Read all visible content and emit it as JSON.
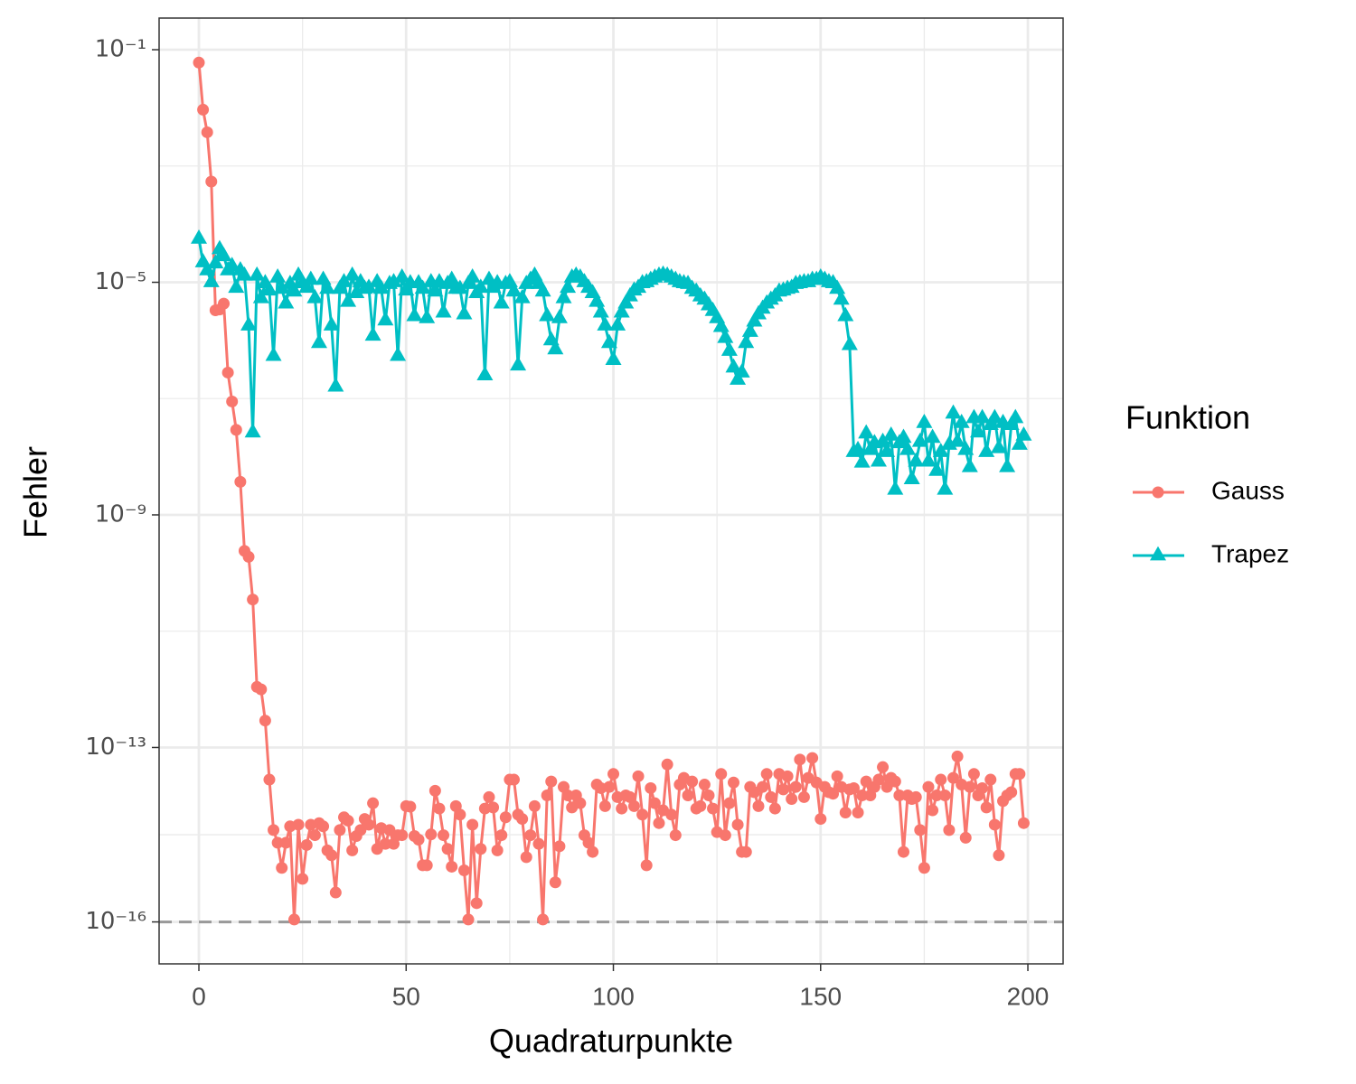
{
  "chart_data": {
    "type": "line",
    "x_label": "Quadraturpunkte",
    "y_label": "Fehler",
    "legend_title": "Funktion",
    "legend": "right",
    "log_y": true,
    "grid": true,
    "xlim": [
      -9.6,
      208.5
    ],
    "xticks": [
      0,
      50,
      100,
      150,
      200
    ],
    "x_minor_grid": [
      25,
      75,
      125,
      175
    ],
    "ylim": [
      0.35,
      1.9e-17
    ],
    "yticks": [
      {
        "value": 0.1,
        "label": "10⁻¹"
      },
      {
        "value": 1e-05,
        "label": "10⁻⁵"
      },
      {
        "value": 1e-09,
        "label": "10⁻⁹"
      },
      {
        "value": 1e-13,
        "label": "10⁻¹³"
      },
      {
        "value": 1e-16,
        "label": "10⁻¹⁶"
      }
    ],
    "y_minor_grid": [
      0.001,
      1e-07,
      1e-11,
      3.16e-15
    ],
    "hline": 1e-16,
    "x": [
      0,
      1,
      2,
      3,
      4,
      5,
      6,
      7,
      8,
      9,
      10,
      11,
      12,
      13,
      14,
      15,
      16,
      17,
      18,
      19,
      20,
      21,
      22,
      23,
      24,
      25,
      26,
      27,
      28,
      29,
      30,
      31,
      32,
      33,
      34,
      35,
      36,
      37,
      38,
      39,
      40,
      41,
      42,
      43,
      44,
      45,
      46,
      47,
      48,
      49,
      50,
      51,
      52,
      53,
      54,
      55,
      56,
      57,
      58,
      59,
      60,
      61,
      62,
      63,
      64,
      65,
      66,
      67,
      68,
      69,
      70,
      71,
      72,
      73,
      74,
      75,
      76,
      77,
      78,
      79,
      80,
      81,
      82,
      83,
      84,
      85,
      86,
      87,
      88,
      89,
      90,
      91,
      92,
      93,
      94,
      95,
      96,
      97,
      98,
      99,
      100,
      101,
      102,
      103,
      104,
      105,
      106,
      107,
      108,
      109,
      110,
      111,
      112,
      113,
      114,
      115,
      116,
      117,
      118,
      119,
      120,
      121,
      122,
      123,
      124,
      125,
      126,
      127,
      128,
      129,
      130,
      131,
      132,
      133,
      134,
      135,
      136,
      137,
      138,
      139,
      140,
      141,
      142,
      143,
      144,
      145,
      146,
      147,
      148,
      149,
      150,
      151,
      152,
      153,
      154,
      155,
      156,
      157,
      158,
      159,
      160,
      161,
      162,
      163,
      164,
      165,
      166,
      167,
      168,
      169,
      170,
      171,
      172,
      173,
      174,
      175,
      176,
      177,
      178,
      179,
      180,
      181,
      182,
      183,
      184,
      185,
      186,
      187,
      188,
      189,
      190,
      191,
      192,
      193,
      194,
      195,
      196,
      197,
      198,
      199
    ],
    "series": [
      {
        "name": "Gauss",
        "color": "#F8766D",
        "shape": "circle",
        "values": [
          0.06,
          0.0093,
          0.0038,
          0.00054,
          3.3e-06,
          3.4e-06,
          4.3e-06,
          2.8e-07,
          8.9e-08,
          2.9e-08,
          3.7e-09,
          2.4e-10,
          1.9e-10,
          3.5e-11,
          1.1e-12,
          1e-12,
          2.9e-13,
          2.8e-14,
          3.8e-15,
          2.3e-15,
          8.5e-16,
          2.3e-15,
          4.4e-15,
          1.1e-16,
          4.7e-15,
          5.5e-16,
          2.1e-15,
          4.7e-15,
          3.1e-15,
          5e-15,
          4.4e-15,
          1.7e-15,
          1.4e-15,
          3.2e-16,
          3.8e-15,
          6.3e-15,
          5.5e-15,
          1.7e-15,
          3e-15,
          3.8e-15,
          5.9e-15,
          4.7e-15,
          1.1e-14,
          1.8e-15,
          4.1e-15,
          2.2e-15,
          3.8e-15,
          2.2e-15,
          3.1e-15,
          3.1e-15,
          9.8e-15,
          9.6e-15,
          3e-15,
          2.6e-15,
          9.4e-16,
          9.4e-16,
          3.2e-15,
          1.8e-14,
          8.9e-15,
          3.1e-15,
          1.8e-15,
          8.9e-16,
          9.8e-15,
          7e-15,
          7.7e-16,
          1.1e-16,
          4.7e-15,
          2.1e-16,
          1.8e-15,
          8.9e-15,
          1.4e-14,
          9.3e-15,
          1.7e-15,
          3.1e-15,
          6.3e-15,
          2.8e-14,
          2.8e-14,
          7e-15,
          5.9e-15,
          1.3e-15,
          3.1e-15,
          9.8e-15,
          2.2e-15,
          1.1e-16,
          1.5e-14,
          2.6e-14,
          4.8e-16,
          2e-15,
          2.1e-14,
          1.5e-14,
          9.3e-15,
          1.5e-14,
          1.1e-14,
          3.1e-15,
          2.3e-15,
          1.6e-15,
          2.3e-14,
          2e-14,
          9.8e-15,
          2.1e-14,
          3.5e-14,
          1.4e-14,
          8.9e-15,
          1.5e-14,
          1.4e-14,
          9.8e-15,
          3.2e-14,
          7e-15,
          9.4e-16,
          2e-14,
          1.1e-14,
          5e-15,
          8.3e-15,
          5.1e-14,
          7e-15,
          3.1e-15,
          2.3e-14,
          3e-14,
          1.5e-14,
          2.6e-14,
          8.9e-15,
          9.8e-15,
          2.3e-14,
          1.5e-14,
          8.9e-15,
          3.5e-15,
          3.5e-14,
          3.1e-15,
          1.1e-14,
          2.5e-14,
          4.7e-15,
          1.6e-15,
          1.6e-15,
          2.1e-14,
          1.7e-14,
          9.8e-15,
          2.1e-14,
          3.5e-14,
          1.4e-14,
          8.9e-15,
          3.5e-14,
          1.9e-14,
          3.2e-14,
          1.3e-14,
          2.1e-14,
          6.2e-14,
          1.4e-14,
          3e-14,
          6.6e-14,
          2.5e-14,
          5.9e-15,
          2.1e-14,
          1.7e-14,
          1.6e-14,
          3.2e-14,
          2.1e-14,
          7.6e-15,
          1.9e-14,
          2e-14,
          7.6e-15,
          1.5e-14,
          2.6e-14,
          1.5e-14,
          2.1e-14,
          2.8e-14,
          4.6e-14,
          2.1e-14,
          3e-14,
          2.6e-14,
          1.5e-14,
          1.6e-15,
          1.5e-14,
          1.3e-14,
          1.4e-14,
          3.8e-15,
          8.5e-16,
          2.1e-14,
          8.3e-15,
          1.5e-14,
          2.8e-14,
          1.5e-14,
          3.8e-15,
          3e-14,
          7e-14,
          2.3e-14,
          2.8e-15,
          2.1e-14,
          3.5e-14,
          1.5e-14,
          2e-14,
          9.3e-15,
          2.8e-14,
          4.7e-15,
          1.4e-15,
          1.2e-14,
          1.5e-14,
          1.7e-14,
          3.5e-14,
          3.5e-14,
          5e-15
        ]
      },
      {
        "name": "Trapez",
        "color": "#00BFC4",
        "shape": "triangle",
        "values": [
          5.6e-05,
          2.2e-05,
          1.6e-05,
          1e-05,
          2.1e-05,
          3.7e-05,
          2.8e-05,
          1.6e-05,
          1.9e-05,
          8e-06,
          1.6e-05,
          1.3e-05,
          1.8e-06,
          2.6e-08,
          1.3e-05,
          5.3e-06,
          9.6e-06,
          7.2e-06,
          5.4e-07,
          1.2e-05,
          7.7e-06,
          4.3e-06,
          9.3e-06,
          6.9e-06,
          1.3e-05,
          9.6e-06,
          8e-06,
          1.1e-05,
          5.3e-06,
          9e-07,
          1.1e-05,
          7.7e-06,
          1.8e-06,
          1.6e-07,
          7.7e-06,
          1e-05,
          4.6e-06,
          1.3e-05,
          6.5e-06,
          1e-05,
          7.7e-06,
          8e-06,
          1.2e-06,
          1e-05,
          7.7e-06,
          2.2e-06,
          9.3e-06,
          1e-05,
          5.4e-07,
          1.2e-05,
          7.2e-06,
          9.6e-06,
          2.6e-06,
          9.6e-06,
          7.7e-06,
          2.4e-06,
          1e-05,
          6.9e-06,
          1e-05,
          3e-06,
          9.3e-06,
          1.1e-05,
          7.7e-06,
          7.7e-06,
          2.8e-06,
          9.3e-06,
          1.2e-05,
          6.5e-06,
          8e-06,
          2.5e-07,
          1.1e-05,
          8e-06,
          9.6e-06,
          4.3e-06,
          9.3e-06,
          1e-05,
          6.9e-06,
          3.7e-07,
          5.3e-06,
          9.3e-06,
          1.1e-05,
          1.3e-05,
          9.3e-06,
          6.9e-06,
          2.6e-06,
          1e-06,
          7e-07,
          2.4e-06,
          5.3e-06,
          8e-06,
          1.2e-05,
          1.3e-05,
          1.2e-05,
          1e-05,
          8e-06,
          6.5e-06,
          4.6e-06,
          3e-06,
          1.8e-06,
          9e-07,
          4.6e-07,
          1.8e-06,
          3e-06,
          4.3e-06,
          5.7e-06,
          7.2e-06,
          8e-06,
          9.6e-06,
          1e-05,
          1.1e-05,
          1.2e-05,
          1.3e-05,
          1.35e-05,
          1.3e-05,
          1.2e-05,
          1.1e-05,
          1e-05,
          9.6e-06,
          9.3e-06,
          7.7e-06,
          6.9e-06,
          5.7e-06,
          5e-06,
          4e-06,
          3.2e-06,
          2.4e-06,
          1.7e-06,
          1.1e-06,
          6.6e-07,
          3.4e-07,
          2.1e-07,
          2.8e-07,
          9e-07,
          1.4e-06,
          2.1e-06,
          2.8e-06,
          3.5e-06,
          4.3e-06,
          5e-06,
          5.7e-06,
          6.9e-06,
          7.2e-06,
          7.7e-06,
          8e-06,
          9.3e-06,
          9.6e-06,
          1e-05,
          1e-05,
          1.1e-05,
          1.1e-05,
          1.2e-05,
          1.1e-05,
          1e-05,
          9.6e-06,
          7.7e-06,
          5e-06,
          2.6e-06,
          8.3e-07,
          1.2e-08,
          1.3e-08,
          7.9e-09,
          2.5e-08,
          1.3e-08,
          1.7e-08,
          8.2e-09,
          1.8e-08,
          1.2e-08,
          2.3e-08,
          2.7e-09,
          1.7e-08,
          2.1e-08,
          1.3e-08,
          4.1e-09,
          8.2e-09,
          1.8e-08,
          3.8e-08,
          8.2e-09,
          2.1e-08,
          5.7e-09,
          1.2e-08,
          2.7e-09,
          1.6e-08,
          5.5e-08,
          1.8e-08,
          3.8e-08,
          1.3e-08,
          6.6e-09,
          4.6e-08,
          2.6e-08,
          4.6e-08,
          1.2e-08,
          3.5e-08,
          4.6e-08,
          1.4e-08,
          3.8e-08,
          6.6e-09,
          3.5e-08,
          4.6e-08,
          1.6e-08,
          2.3e-08
        ]
      }
    ]
  }
}
